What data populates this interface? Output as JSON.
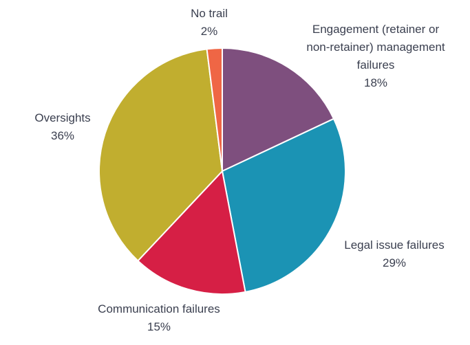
{
  "chart_data": {
    "type": "pie",
    "title": "",
    "start_angle_deg": 0,
    "direction": "clockwise",
    "slices": [
      {
        "label_lines": [
          "Engagement (retainer or",
          "non-retainer) management",
          "failures"
        ],
        "value": 18,
        "value_label": "18%",
        "color": "#7e4f7e"
      },
      {
        "label_lines": [
          "Legal issue failures"
        ],
        "value": 29,
        "value_label": "29%",
        "color": "#1b93b4"
      },
      {
        "label_lines": [
          "Communication failures"
        ],
        "value": 15,
        "value_label": "15%",
        "color": "#d61f45"
      },
      {
        "label_lines": [
          "Oversights"
        ],
        "value": 36,
        "value_label": "36%",
        "color": "#c1ae2f"
      },
      {
        "label_lines": [
          "No trail"
        ],
        "value": 2,
        "value_label": "2%",
        "color": "#ef6645"
      }
    ]
  }
}
